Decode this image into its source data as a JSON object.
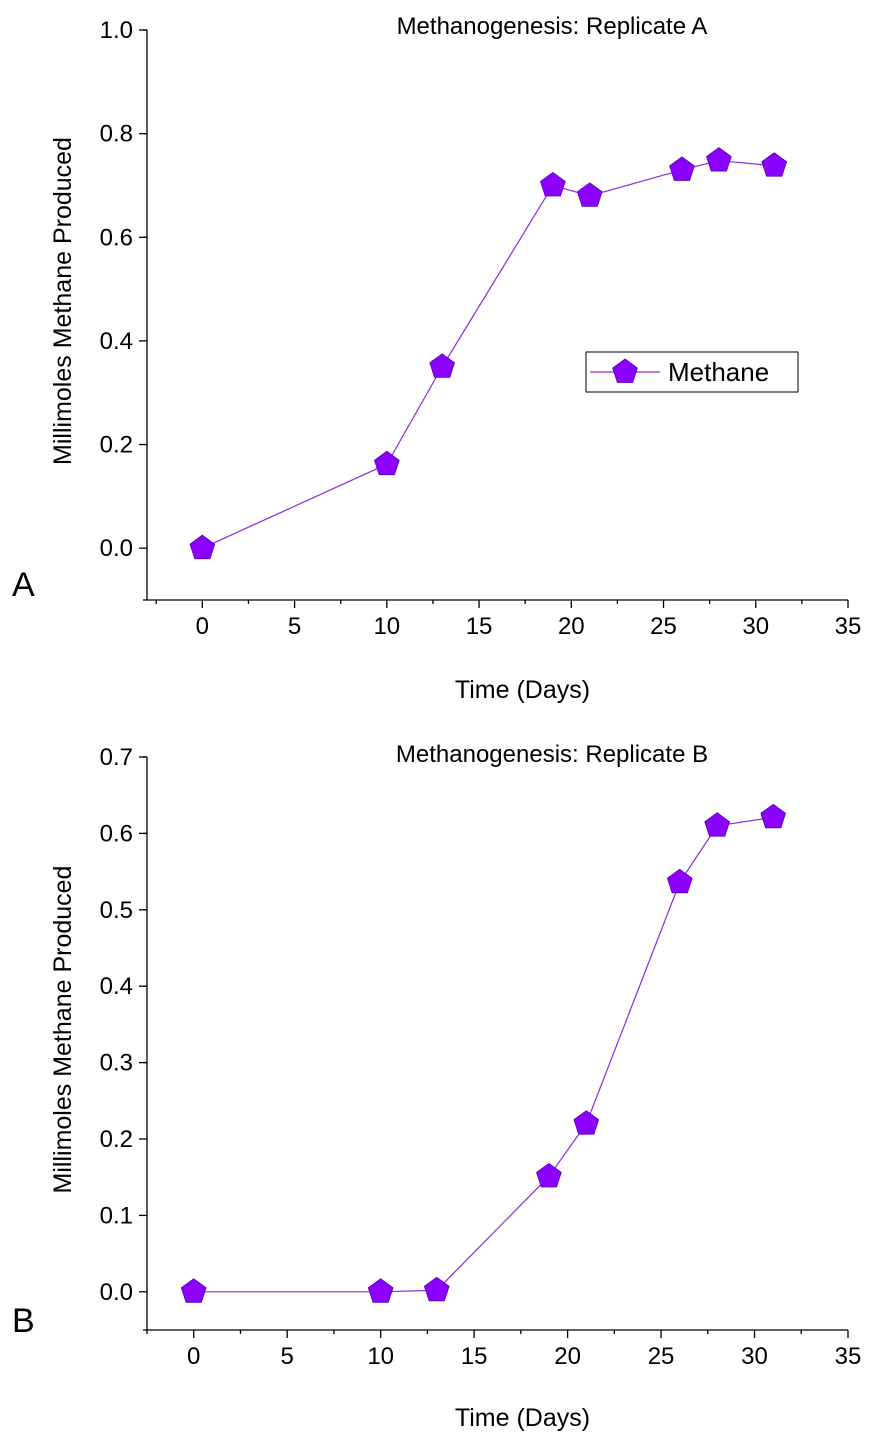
{
  "chart_data": [
    {
      "type": "line",
      "panel_label": "A",
      "title": "Methanogenesis: Replicate A",
      "xlabel": "Time (Days)",
      "ylabel": "Millimoles Methane Produced",
      "xlim": [
        -3,
        35
      ],
      "ylim": [
        -0.1,
        1.0
      ],
      "xticks": [
        0,
        5,
        10,
        15,
        20,
        25,
        30,
        35
      ],
      "yticks": [
        0.0,
        0.2,
        0.4,
        0.6,
        0.8,
        1.0
      ],
      "xtick_labels": [
        "0",
        "5",
        "10",
        "15",
        "20",
        "25",
        "30",
        "35"
      ],
      "ytick_labels": [
        "0.0",
        "0.2",
        "0.4",
        "0.6",
        "0.8",
        "1.0"
      ],
      "legend_position": "center-right",
      "series": [
        {
          "name": "Methane",
          "color": "#8b00ff",
          "marker": "pentagon",
          "x": [
            0,
            10,
            13,
            19,
            21,
            26,
            28,
            31
          ],
          "y": [
            0.0,
            0.162,
            0.35,
            0.7,
            0.68,
            0.73,
            0.748,
            0.738
          ]
        }
      ]
    },
    {
      "type": "line",
      "panel_label": "B",
      "title": "Methanogenesis: Replicate B",
      "xlabel": "Time (Days)",
      "ylabel": "Millimoles Methane Produced",
      "xlim": [
        -2.5,
        35
      ],
      "ylim": [
        -0.05,
        0.7
      ],
      "xticks": [
        0,
        5,
        10,
        15,
        20,
        25,
        30,
        35
      ],
      "yticks": [
        0.0,
        0.1,
        0.2,
        0.3,
        0.4,
        0.5,
        0.6,
        0.7
      ],
      "xtick_labels": [
        "0",
        "5",
        "10",
        "15",
        "20",
        "25",
        "30",
        "35"
      ],
      "ytick_labels": [
        "0.0",
        "0.1",
        "0.2",
        "0.3",
        "0.4",
        "0.5",
        "0.6",
        "0.7"
      ],
      "series": [
        {
          "name": "Methane",
          "color": "#8b00ff",
          "marker": "pentagon",
          "x": [
            0,
            10,
            13,
            19,
            21,
            26,
            28,
            31
          ],
          "y": [
            0.0,
            0.0,
            0.002,
            0.151,
            0.22,
            0.536,
            0.61,
            0.621
          ]
        }
      ]
    }
  ]
}
